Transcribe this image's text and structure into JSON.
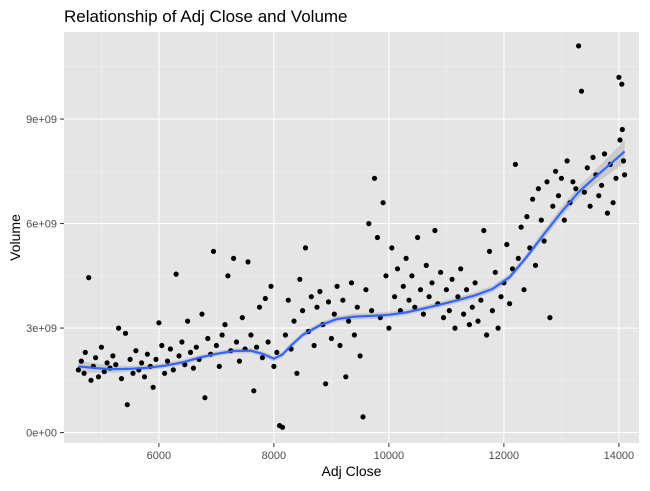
{
  "colors": {
    "panel_bg": "#E5E5E5",
    "grid_major": "#FFFFFF",
    "grid_minor": "#F2F2F2",
    "point": "#000000",
    "smooth_line": "#3366FF",
    "smooth_band": "#B8B8B8",
    "tick_text": "#4D4D4D",
    "tick_mark": "#333333"
  },
  "chart_data": {
    "type": "scatter",
    "title": "Relationship of Adj Close and Volume",
    "xlabel": "Adj Close",
    "ylabel": "Volume",
    "xlim": [
      4350,
      14350
    ],
    "ylim": [
      -300000000,
      11500000000
    ],
    "x_ticks": [
      6000,
      8000,
      10000,
      12000,
      14000
    ],
    "x_tick_labels": [
      "6000",
      "8000",
      "10000",
      "12000",
      "14000"
    ],
    "y_ticks": [
      0,
      3000000000,
      6000000000,
      9000000000
    ],
    "y_tick_labels": [
      "0e+00",
      "3e+09",
      "6e+09",
      "9e+09"
    ],
    "grid": true,
    "legend": "none",
    "points": [
      [
        4600,
        1800000000
      ],
      [
        4650,
        2050000000
      ],
      [
        4700,
        1700000000
      ],
      [
        4720,
        2300000000
      ],
      [
        4780,
        4450000000
      ],
      [
        4820,
        1500000000
      ],
      [
        4860,
        1900000000
      ],
      [
        4900,
        2150000000
      ],
      [
        4950,
        1600000000
      ],
      [
        5000,
        2450000000
      ],
      [
        5050,
        1750000000
      ],
      [
        5100,
        2000000000
      ],
      [
        5150,
        1850000000
      ],
      [
        5200,
        2200000000
      ],
      [
        5250,
        1950000000
      ],
      [
        5300,
        3000000000
      ],
      [
        5350,
        1550000000
      ],
      [
        5420,
        2850000000
      ],
      [
        5450,
        800000000
      ],
      [
        5500,
        2100000000
      ],
      [
        5550,
        1700000000
      ],
      [
        5600,
        2350000000
      ],
      [
        5650,
        1800000000
      ],
      [
        5700,
        2000000000
      ],
      [
        5750,
        1600000000
      ],
      [
        5800,
        2250000000
      ],
      [
        5850,
        1900000000
      ],
      [
        5900,
        1300000000
      ],
      [
        5950,
        2100000000
      ],
      [
        6000,
        3150000000
      ],
      [
        6050,
        2500000000
      ],
      [
        6100,
        1700000000
      ],
      [
        6150,
        2050000000
      ],
      [
        6200,
        2400000000
      ],
      [
        6250,
        1800000000
      ],
      [
        6300,
        4550000000
      ],
      [
        6350,
        2200000000
      ],
      [
        6400,
        2600000000
      ],
      [
        6450,
        1950000000
      ],
      [
        6500,
        3200000000
      ],
      [
        6550,
        2300000000
      ],
      [
        6600,
        1850000000
      ],
      [
        6650,
        2450000000
      ],
      [
        6700,
        2100000000
      ],
      [
        6750,
        3400000000
      ],
      [
        6800,
        1000000000
      ],
      [
        6850,
        2700000000
      ],
      [
        6900,
        2250000000
      ],
      [
        6950,
        5200000000
      ],
      [
        7000,
        2500000000
      ],
      [
        7050,
        1900000000
      ],
      [
        7100,
        2800000000
      ],
      [
        7150,
        3100000000
      ],
      [
        7200,
        4500000000
      ],
      [
        7250,
        2350000000
      ],
      [
        7300,
        5000000000
      ],
      [
        7350,
        2600000000
      ],
      [
        7400,
        2050000000
      ],
      [
        7450,
        3300000000
      ],
      [
        7500,
        2400000000
      ],
      [
        7550,
        4900000000
      ],
      [
        7600,
        2800000000
      ],
      [
        7650,
        1200000000
      ],
      [
        7700,
        2450000000
      ],
      [
        7750,
        3600000000
      ],
      [
        7800,
        2150000000
      ],
      [
        7850,
        3850000000
      ],
      [
        7900,
        2600000000
      ],
      [
        7950,
        4200000000
      ],
      [
        8000,
        1900000000
      ],
      [
        8050,
        2300000000
      ],
      [
        8100,
        200000000
      ],
      [
        8150,
        150000000
      ],
      [
        8200,
        2800000000
      ],
      [
        8250,
        3800000000
      ],
      [
        8300,
        2400000000
      ],
      [
        8350,
        3200000000
      ],
      [
        8400,
        1700000000
      ],
      [
        8450,
        4400000000
      ],
      [
        8500,
        3500000000
      ],
      [
        8550,
        5300000000
      ],
      [
        8600,
        2900000000
      ],
      [
        8650,
        3900000000
      ],
      [
        8700,
        2500000000
      ],
      [
        8750,
        3600000000
      ],
      [
        8800,
        4050000000
      ],
      [
        8850,
        3100000000
      ],
      [
        8900,
        1400000000
      ],
      [
        8950,
        3750000000
      ],
      [
        9000,
        2700000000
      ],
      [
        9050,
        3400000000
      ],
      [
        9100,
        4200000000
      ],
      [
        9150,
        2500000000
      ],
      [
        9200,
        3800000000
      ],
      [
        9250,
        1600000000
      ],
      [
        9300,
        3200000000
      ],
      [
        9350,
        4300000000
      ],
      [
        9400,
        2800000000
      ],
      [
        9450,
        3600000000
      ],
      [
        9500,
        2200000000
      ],
      [
        9550,
        450000000
      ],
      [
        9600,
        4100000000
      ],
      [
        9650,
        6000000000
      ],
      [
        9700,
        3500000000
      ],
      [
        9750,
        7300000000
      ],
      [
        9800,
        5600000000
      ],
      [
        9850,
        3300000000
      ],
      [
        9900,
        6600000000
      ],
      [
        9950,
        4500000000
      ],
      [
        10000,
        3000000000
      ],
      [
        10050,
        5300000000
      ],
      [
        10100,
        3900000000
      ],
      [
        10150,
        4700000000
      ],
      [
        10200,
        3500000000
      ],
      [
        10250,
        4200000000
      ],
      [
        10300,
        5000000000
      ],
      [
        10350,
        3800000000
      ],
      [
        10400,
        4500000000
      ],
      [
        10450,
        3600000000
      ],
      [
        10500,
        5600000000
      ],
      [
        10550,
        4100000000
      ],
      [
        10600,
        3400000000
      ],
      [
        10650,
        4800000000
      ],
      [
        10700,
        3900000000
      ],
      [
        10750,
        4300000000
      ],
      [
        10800,
        5800000000
      ],
      [
        10850,
        3700000000
      ],
      [
        10900,
        4600000000
      ],
      [
        10950,
        3300000000
      ],
      [
        11000,
        4100000000
      ],
      [
        11050,
        3500000000
      ],
      [
        11100,
        4400000000
      ],
      [
        11150,
        3000000000
      ],
      [
        11200,
        3900000000
      ],
      [
        11250,
        4700000000
      ],
      [
        11300,
        3400000000
      ],
      [
        11350,
        4100000000
      ],
      [
        11400,
        3100000000
      ],
      [
        11450,
        3600000000
      ],
      [
        11500,
        4300000000
      ],
      [
        11550,
        3200000000
      ],
      [
        11600,
        3800000000
      ],
      [
        11650,
        5800000000
      ],
      [
        11700,
        2800000000
      ],
      [
        11750,
        5200000000
      ],
      [
        11800,
        3500000000
      ],
      [
        11850,
        4600000000
      ],
      [
        11900,
        3000000000
      ],
      [
        11950,
        3900000000
      ],
      [
        12000,
        4300000000
      ],
      [
        12050,
        5400000000
      ],
      [
        12100,
        3700000000
      ],
      [
        12150,
        4700000000
      ],
      [
        12200,
        7700000000
      ],
      [
        12250,
        5000000000
      ],
      [
        12300,
        5900000000
      ],
      [
        12350,
        4100000000
      ],
      [
        12400,
        6200000000
      ],
      [
        12450,
        5300000000
      ],
      [
        12500,
        6700000000
      ],
      [
        12550,
        4800000000
      ],
      [
        12600,
        7000000000
      ],
      [
        12650,
        6100000000
      ],
      [
        12700,
        5500000000
      ],
      [
        12750,
        7200000000
      ],
      [
        12800,
        3300000000
      ],
      [
        12850,
        6500000000
      ],
      [
        12900,
        7500000000
      ],
      [
        12950,
        6800000000
      ],
      [
        13000,
        7300000000
      ],
      [
        13050,
        6100000000
      ],
      [
        13100,
        7800000000
      ],
      [
        13150,
        6600000000
      ],
      [
        13200,
        7200000000
      ],
      [
        13250,
        7000000000
      ],
      [
        13300,
        11100000000
      ],
      [
        13350,
        9800000000
      ],
      [
        13400,
        6900000000
      ],
      [
        13450,
        7600000000
      ],
      [
        13500,
        6500000000
      ],
      [
        13550,
        7900000000
      ],
      [
        13600,
        7400000000
      ],
      [
        13650,
        6800000000
      ],
      [
        13700,
        7100000000
      ],
      [
        13750,
        8000000000
      ],
      [
        13800,
        6300000000
      ],
      [
        13850,
        7700000000
      ],
      [
        13900,
        6600000000
      ],
      [
        13950,
        7300000000
      ],
      [
        14000,
        10200000000
      ],
      [
        14020,
        8400000000
      ],
      [
        14050,
        10000000000
      ],
      [
        14060,
        8700000000
      ],
      [
        14080,
        7800000000
      ],
      [
        14100,
        7400000000
      ]
    ],
    "smooth": [
      [
        4600,
        1900000000
      ],
      [
        4900,
        1850000000
      ],
      [
        5200,
        1820000000
      ],
      [
        5500,
        1830000000
      ],
      [
        5800,
        1860000000
      ],
      [
        6100,
        1920000000
      ],
      [
        6400,
        2010000000
      ],
      [
        6700,
        2150000000
      ],
      [
        7000,
        2260000000
      ],
      [
        7300,
        2340000000
      ],
      [
        7600,
        2350000000
      ],
      [
        7800,
        2260000000
      ],
      [
        8000,
        2120000000
      ],
      [
        8150,
        2240000000
      ],
      [
        8300,
        2500000000
      ],
      [
        8500,
        2800000000
      ],
      [
        8800,
        3080000000
      ],
      [
        9100,
        3260000000
      ],
      [
        9400,
        3330000000
      ],
      [
        9700,
        3350000000
      ],
      [
        10000,
        3380000000
      ],
      [
        10300,
        3450000000
      ],
      [
        10600,
        3560000000
      ],
      [
        10900,
        3680000000
      ],
      [
        11200,
        3800000000
      ],
      [
        11500,
        3940000000
      ],
      [
        11800,
        4120000000
      ],
      [
        12100,
        4460000000
      ],
      [
        12400,
        5050000000
      ],
      [
        12700,
        5700000000
      ],
      [
        13000,
        6330000000
      ],
      [
        13300,
        6900000000
      ],
      [
        13600,
        7350000000
      ],
      [
        13900,
        7780000000
      ],
      [
        14100,
        8070000000
      ]
    ],
    "smooth_band_halfwidth": [
      [
        4600,
        160000000
      ],
      [
        5500,
        80000000
      ],
      [
        7000,
        70000000
      ],
      [
        8000,
        80000000
      ],
      [
        9500,
        90000000
      ],
      [
        11000,
        80000000
      ],
      [
        12500,
        110000000
      ],
      [
        13500,
        180000000
      ],
      [
        14100,
        320000000
      ]
    ]
  }
}
